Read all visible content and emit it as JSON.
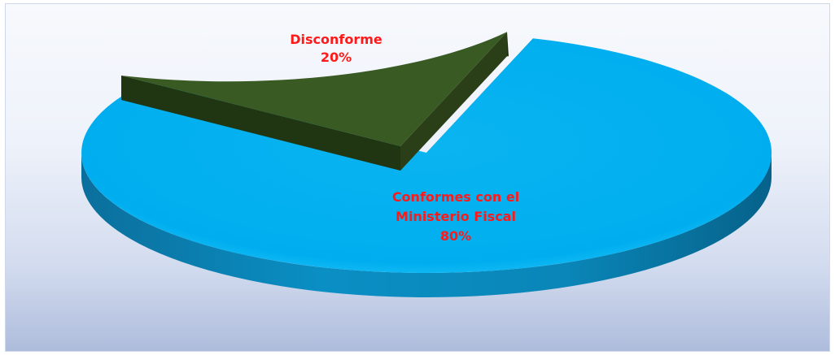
{
  "chart_data": {
    "type": "pie",
    "title": "",
    "three_d": true,
    "slices": [
      {
        "label_lines": [
          "Disconforme"
        ],
        "value_label": "20%",
        "value": 20,
        "color": "#3a5a24",
        "exploded": true
      },
      {
        "label_lines": [
          "Conformes con el",
          "Ministerio Fiscal"
        ],
        "value_label": "80%",
        "value": 80,
        "color": "#00aeef",
        "exploded": false
      }
    ],
    "label_color": "#ff1a1a"
  }
}
